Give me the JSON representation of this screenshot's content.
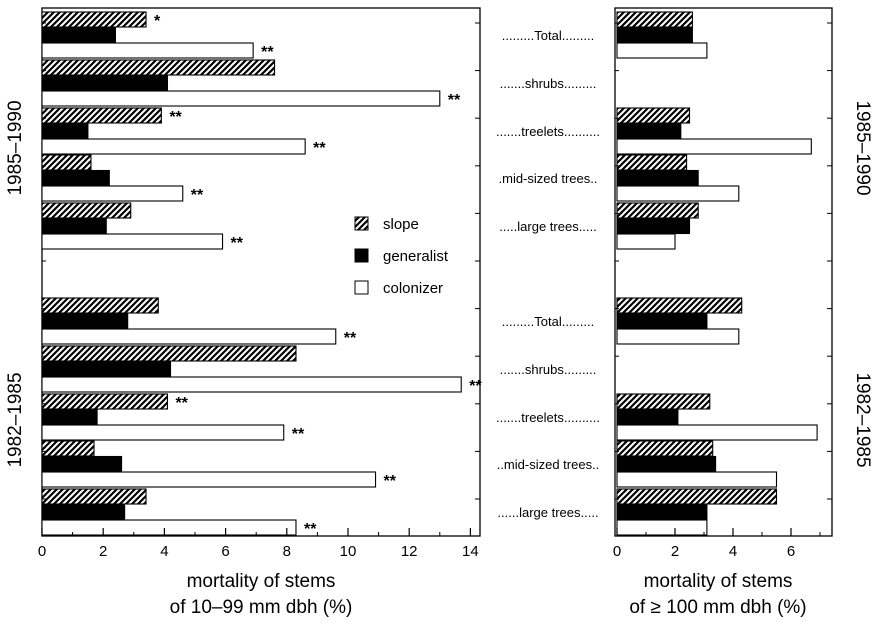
{
  "colors": {
    "generalist": "#000000",
    "colonizer": "#ffffff",
    "slope_pattern": "diagonal-hatch",
    "ink": "#000000"
  },
  "chart_data": [
    {
      "id": "small-stems",
      "type": "bar",
      "orientation": "horizontal",
      "xlabel_lines": [
        "mortality of stems",
        "of 10–99 mm dbh (%)"
      ],
      "xlim": [
        0,
        14.5
      ],
      "xticks": [
        0,
        2,
        4,
        6,
        8,
        10,
        12,
        14
      ],
      "series_names": [
        "slope",
        "generalist",
        "colonizer"
      ],
      "periods": [
        {
          "label": "1985–1990",
          "groups": [
            {
              "category": "Total",
              "values": [
                3.4,
                2.4,
                6.9
              ],
              "marks": [
                "*",
                "",
                "**"
              ]
            },
            {
              "category": "shrubs",
              "values": [
                7.6,
                4.1,
                13.0
              ],
              "marks": [
                "",
                "",
                "**"
              ]
            },
            {
              "category": "treelets",
              "values": [
                3.9,
                1.5,
                8.6
              ],
              "marks": [
                "**",
                "",
                "**"
              ]
            },
            {
              "category": "mid-sized trees",
              "values": [
                1.6,
                2.2,
                4.6
              ],
              "marks": [
                "",
                "",
                "**"
              ]
            },
            {
              "category": "large trees",
              "values": [
                2.9,
                2.1,
                5.9
              ],
              "marks": [
                "",
                "",
                "**"
              ]
            }
          ]
        },
        {
          "label": "1982–1985",
          "groups": [
            {
              "category": "Total",
              "values": [
                3.8,
                2.8,
                9.6
              ],
              "marks": [
                "",
                "",
                "**"
              ]
            },
            {
              "category": "shrubs",
              "values": [
                8.3,
                4.2,
                13.7
              ],
              "marks": [
                "",
                "",
                "**"
              ]
            },
            {
              "category": "treelets",
              "values": [
                4.1,
                1.8,
                7.9
              ],
              "marks": [
                "**",
                "",
                "**"
              ]
            },
            {
              "category": "mid-sized trees",
              "values": [
                1.7,
                2.6,
                10.9
              ],
              "marks": [
                "",
                "",
                "**"
              ]
            },
            {
              "category": "large trees",
              "values": [
                3.4,
                2.7,
                8.3
              ],
              "marks": [
                "",
                "",
                "**"
              ]
            }
          ]
        }
      ]
    },
    {
      "id": "large-stems",
      "type": "bar",
      "orientation": "horizontal",
      "xlabel_lines": [
        "mortality of stems",
        "of ≥ 100 mm dbh (%)"
      ],
      "xlim": [
        0,
        7.3
      ],
      "xticks": [
        0,
        2,
        4,
        6
      ],
      "series_names": [
        "slope",
        "generalist",
        "colonizer"
      ],
      "periods": [
        {
          "label": "1985–1990",
          "groups": [
            {
              "category": "Total",
              "values": [
                2.6,
                2.6,
                3.1
              ]
            },
            {
              "category": "shrubs",
              "values": [
                null,
                null,
                null
              ]
            },
            {
              "category": "treelets",
              "values": [
                2.5,
                2.2,
                6.7
              ]
            },
            {
              "category": "mid-sized trees",
              "values": [
                2.4,
                2.8,
                4.2
              ]
            },
            {
              "category": "large trees",
              "values": [
                2.8,
                2.5,
                2.0
              ]
            }
          ]
        },
        {
          "label": "1982–1985",
          "groups": [
            {
              "category": "Total",
              "values": [
                4.3,
                3.1,
                4.2
              ]
            },
            {
              "category": "shrubs",
              "values": [
                null,
                null,
                null
              ]
            },
            {
              "category": "treelets",
              "values": [
                3.2,
                2.1,
                6.9
              ]
            },
            {
              "category": "mid-sized trees",
              "values": [
                3.3,
                3.4,
                5.5
              ]
            },
            {
              "category": "large trees",
              "values": [
                5.5,
                3.1,
                3.1
              ]
            }
          ]
        }
      ]
    }
  ],
  "middle_labels": [
    ".........Total.........",
    ".......shrubs.........",
    ".......treelets..........",
    ".mid-sized trees..",
    ".....large trees.....",
    ".........Total.........",
    ".......shrubs.........",
    ".......treelets..........",
    "..mid-sized trees..",
    "......large trees....."
  ],
  "legend": {
    "items": [
      {
        "label": "slope",
        "swatch": "hatch"
      },
      {
        "label": "generalist",
        "swatch": "solid"
      },
      {
        "label": "colonizer",
        "swatch": "open"
      }
    ]
  },
  "period_labels": [
    "1985–1990",
    "1982–1985"
  ]
}
